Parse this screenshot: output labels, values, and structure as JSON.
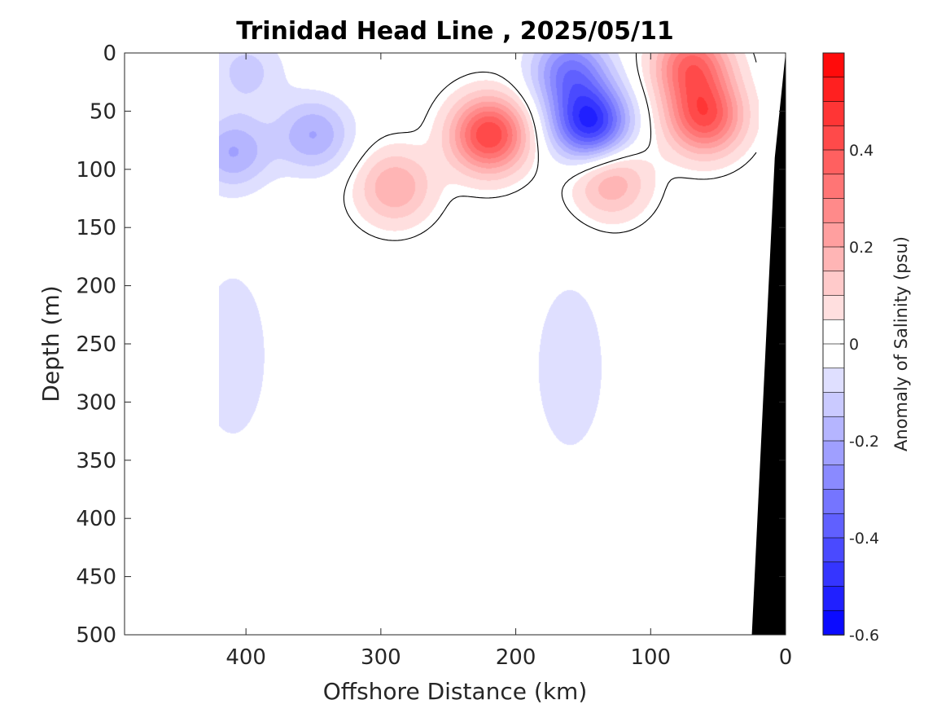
{
  "chart_data": {
    "type": "heatmap",
    "subtype": "filled-contour",
    "title": "Trinidad Head Line , 2025/05/11",
    "xlabel": "Offshore Distance (km)",
    "ylabel": "Depth (m)",
    "xlim": [
      490,
      0
    ],
    "ylim": [
      500,
      0
    ],
    "x_reversed": true,
    "y_reversed": true,
    "x_ticks": [
      400,
      300,
      200,
      100,
      0
    ],
    "y_ticks": [
      0,
      50,
      100,
      150,
      200,
      250,
      300,
      350,
      400,
      450,
      500
    ],
    "colorbar": {
      "label": "Anomaly of Salinity (psu)",
      "range": [
        -0.6,
        0.6
      ],
      "levels": 24,
      "ticks": [
        0.4,
        0.2,
        0,
        -0.2,
        -0.4,
        -0.6
      ],
      "colormap": "blue-white-red",
      "neg_color": "#0000ff",
      "zero_color": "#ffffff",
      "pos_color": "#ff0000"
    },
    "data_extent_x": [
      20,
      420
    ],
    "features": [
      {
        "kind": "high",
        "x": 220,
        "y": 70,
        "value": 0.45
      },
      {
        "kind": "high",
        "x": 60,
        "y": 55,
        "value": 0.4
      },
      {
        "kind": "high",
        "x": 70,
        "y": 10,
        "value": 0.35
      },
      {
        "kind": "high",
        "x": 290,
        "y": 115,
        "value": 0.2
      },
      {
        "kind": "high",
        "x": 130,
        "y": 110,
        "value": 0.2
      },
      {
        "kind": "low",
        "x": 145,
        "y": 60,
        "value": -0.5
      },
      {
        "kind": "low",
        "x": 160,
        "y": 15,
        "value": -0.3
      },
      {
        "kind": "low",
        "x": 410,
        "y": 85,
        "value": -0.2
      },
      {
        "kind": "low",
        "x": 350,
        "y": 70,
        "value": -0.2
      },
      {
        "kind": "low",
        "x": 400,
        "y": 15,
        "value": -0.12
      },
      {
        "kind": "low",
        "x": 160,
        "y": 270,
        "value": -0.1
      },
      {
        "kind": "low",
        "x": 410,
        "y": 260,
        "value": -0.1
      }
    ],
    "bathymetry_color": "#000000"
  }
}
